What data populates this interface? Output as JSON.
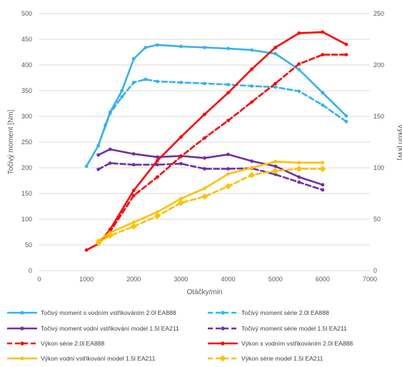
{
  "chart_data": {
    "type": "line",
    "xlabel": "Otáčky/min",
    "ylabel_left": "Točivý moment [Nm]",
    "ylabel_right": "Výkon [kW]",
    "xlim": [
      0,
      7000
    ],
    "ylim_left": [
      0,
      500
    ],
    "ylim_right": [
      0,
      250
    ],
    "x_ticks": [
      0,
      1000,
      2000,
      3000,
      4000,
      5000,
      6000,
      7000
    ],
    "y_ticks_left": [
      0,
      50,
      100,
      150,
      200,
      250,
      300,
      350,
      400,
      450,
      500
    ],
    "y_ticks_right": [
      0,
      50,
      100,
      150,
      200,
      250
    ],
    "grid": true,
    "legend_position": "bottom",
    "series": [
      {
        "name": "Točivý moment s vodním vstřikováním 2.0l EA888",
        "axis": "left",
        "color": "#33b3ed",
        "dashed": false,
        "x": [
          1000,
          1250,
          1400,
          1500,
          1750,
          2000,
          2250,
          2500,
          3000,
          3500,
          4000,
          4500,
          5000,
          5500,
          6000,
          6500
        ],
        "y": [
          203,
          243,
          283,
          308,
          350,
          412,
          434,
          439,
          436,
          434,
          432,
          429,
          422,
          391,
          346,
          301
        ]
      },
      {
        "name": "Točivý moment série 2.0l EA888",
        "axis": "left",
        "color": "#33b3ed",
        "dashed": true,
        "x": [
          1250,
          1500,
          1750,
          2000,
          2250,
          2500,
          3000,
          3500,
          4000,
          4500,
          5000,
          5500,
          6000,
          6500
        ],
        "y": [
          243,
          306,
          338,
          366,
          372,
          368,
          366,
          364,
          362,
          359,
          357,
          349,
          322,
          290
        ]
      },
      {
        "name": "Točivý moment vodní vstřikování model 1.5l EA211",
        "axis": "left",
        "color": "#7030a0",
        "dashed": false,
        "x": [
          1250,
          1500,
          2000,
          2500,
          3000,
          3500,
          4000,
          4500,
          5000,
          5500,
          6000
        ],
        "y": [
          225,
          236,
          227,
          221,
          223,
          219,
          226,
          213,
          203,
          182,
          167
        ]
      },
      {
        "name": "Točivý moment série model 1.5l EA211",
        "axis": "left",
        "color": "#7030a0",
        "dashed": true,
        "x": [
          1250,
          1500,
          2000,
          2500,
          3000,
          3500,
          4000,
          4500,
          5000,
          5500,
          6000
        ],
        "y": [
          197,
          209,
          206,
          206,
          208,
          198,
          198,
          199,
          187,
          172,
          157
        ]
      },
      {
        "name": "Výkon série 2.0l EA888",
        "axis": "right",
        "color": "#ff0000",
        "dashed": true,
        "x": [
          1250,
          1500,
          2000,
          2500,
          3000,
          3500,
          4000,
          4500,
          5000,
          5500,
          6000,
          6500
        ],
        "y": [
          26,
          38,
          73,
          91,
          111,
          129,
          146,
          164,
          182,
          201,
          210,
          210
        ]
      },
      {
        "name": "Výkon s vodním vstřikováním 2.0l EA888",
        "axis": "right",
        "color": "#ff0000",
        "dashed": false,
        "x": [
          1000,
          1250,
          1500,
          2000,
          2500,
          3000,
          3500,
          4000,
          4500,
          5000,
          5500,
          6000,
          6500
        ],
        "y": [
          20,
          26,
          40,
          78,
          107,
          130,
          152,
          173,
          196,
          217,
          231,
          232,
          220
        ]
      },
      {
        "name": "Výkon vodní vstřikování model 1.5l EA211",
        "axis": "right",
        "color": "#ffc000",
        "dashed": false,
        "x": [
          1250,
          1500,
          2000,
          2500,
          3000,
          3500,
          4000,
          4500,
          5000,
          5500,
          6000
        ],
        "y": [
          29,
          37,
          47,
          57,
          70,
          80,
          94,
          100,
          106,
          105,
          105
        ]
      },
      {
        "name": "Výkon série model 1.5l EA211",
        "axis": "right",
        "color": "#ffc000",
        "dashed": true,
        "x": [
          1250,
          1500,
          2000,
          2500,
          3000,
          3500,
          4000,
          4500,
          5000,
          5500,
          6000
        ],
        "y": [
          27,
          34,
          43,
          53,
          66,
          72,
          82,
          93,
          97,
          99,
          99
        ]
      }
    ]
  }
}
